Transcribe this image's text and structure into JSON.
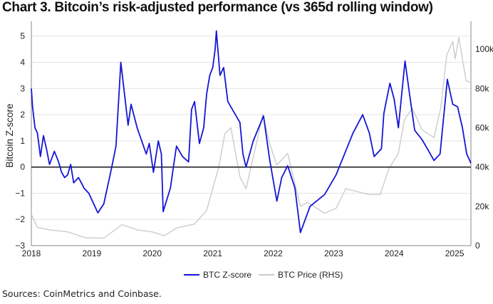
{
  "title": "Chart 3. Bitcoin’s risk-adjusted performance (vs 365d rolling window)",
  "sources": "Sources: CoinMetrics and Coinbase.",
  "chart_data": {
    "type": "line",
    "title": "Chart 3. Bitcoin’s risk-adjusted performance (vs 365d rolling window)",
    "ylabel": "Bitcoin Z-score",
    "y2label": "",
    "xlim": [
      2018,
      2025.27
    ],
    "ylim": [
      -3,
      5.4
    ],
    "y2lim": [
      0,
      112000
    ],
    "x_ticks": [
      "2018",
      "2019",
      "2020",
      "2021",
      "2022",
      "2023",
      "2024",
      "2025"
    ],
    "y_ticks": [
      "−3",
      "−2",
      "−1",
      "0",
      "1",
      "2",
      "3",
      "4",
      "5"
    ],
    "y2_ticks": [
      "0",
      "20k",
      "40k",
      "60k",
      "80k",
      "100k"
    ],
    "grid": true,
    "zero_line": true,
    "legend_position": "bottom",
    "series": [
      {
        "name": "BTC Z-score",
        "color": "#1515d6",
        "axis": "left",
        "x": [
          2018.0,
          2018.02,
          2018.06,
          2018.1,
          2018.15,
          2018.2,
          2018.25,
          2018.3,
          2018.38,
          2018.45,
          2018.5,
          2018.55,
          2018.6,
          2018.65,
          2018.7,
          2018.78,
          2018.85,
          2018.87,
          2018.95,
          2019.1,
          2019.2,
          2019.33,
          2019.4,
          2019.48,
          2019.52,
          2019.6,
          2019.65,
          2019.75,
          2019.9,
          2019.95,
          2020.02,
          2020.1,
          2020.15,
          2020.18,
          2020.3,
          2020.35,
          2020.4,
          2020.5,
          2020.6,
          2020.65,
          2020.7,
          2020.78,
          2020.85,
          2020.9,
          2020.95,
          2021.0,
          2021.04,
          2021.06,
          2021.12,
          2021.18,
          2021.25,
          2021.35,
          2021.45,
          2021.5,
          2021.55,
          2021.67,
          2021.84,
          2021.94,
          2022.06,
          2022.14,
          2022.24,
          2022.36,
          2022.45,
          2022.61,
          2022.85,
          2023.04,
          2023.18,
          2023.32,
          2023.48,
          2023.59,
          2023.67,
          2023.79,
          2023.83,
          2023.93,
          2024.0,
          2024.07,
          2024.18,
          2024.26,
          2024.34,
          2024.46,
          2024.55,
          2024.66,
          2024.76,
          2024.88,
          2024.97,
          2025.05,
          2025.13,
          2025.2,
          2025.27
        ],
        "y": [
          3.0,
          2.3,
          1.5,
          1.3,
          0.4,
          1.2,
          0.7,
          0.1,
          0.6,
          0.2,
          -0.2,
          -0.4,
          -0.3,
          0.1,
          -0.6,
          -0.4,
          -0.7,
          -0.8,
          -1.0,
          -1.75,
          -1.4,
          0.0,
          0.8,
          4.0,
          3.2,
          1.6,
          2.4,
          1.5,
          0.5,
          0.9,
          -0.2,
          1.0,
          0.5,
          -1.7,
          -0.8,
          0.0,
          0.8,
          0.4,
          0.2,
          2.2,
          2.5,
          0.9,
          1.5,
          2.8,
          3.5,
          3.8,
          4.5,
          5.2,
          3.5,
          3.8,
          2.5,
          2.1,
          1.7,
          0.5,
          0.0,
          1.0,
          1.95,
          0.3,
          -1.3,
          -0.4,
          0.05,
          -0.8,
          -2.5,
          -1.5,
          -1.05,
          -0.3,
          0.5,
          1.3,
          2.0,
          1.3,
          0.4,
          0.7,
          2.05,
          3.2,
          2.6,
          1.5,
          4.05,
          2.7,
          1.4,
          1.05,
          0.7,
          0.25,
          0.5,
          3.35,
          2.4,
          2.3,
          1.5,
          0.5,
          0.15
        ]
      },
      {
        "name": "BTC Price (RHS)",
        "color": "#cccccc",
        "axis": "right",
        "x": [
          2018.0,
          2018.1,
          2018.3,
          2018.6,
          2018.9,
          2019.2,
          2019.5,
          2019.75,
          2020.0,
          2020.2,
          2020.4,
          2020.7,
          2020.9,
          2021.0,
          2021.1,
          2021.2,
          2021.3,
          2021.45,
          2021.55,
          2021.7,
          2021.83,
          2021.94,
          2022.06,
          2022.24,
          2022.38,
          2022.45,
          2022.57,
          2022.85,
          2023.04,
          2023.2,
          2023.59,
          2023.77,
          2023.91,
          2024.07,
          2024.17,
          2024.3,
          2024.46,
          2024.66,
          2024.77,
          2024.87,
          2024.97,
          2025.01,
          2025.07,
          2025.19,
          2025.27
        ],
        "y": [
          16000,
          9300,
          8000,
          7000,
          4000,
          3800,
          10700,
          8000,
          7000,
          5000,
          9000,
          11000,
          18000,
          29000,
          40000,
          57000,
          60000,
          35000,
          29000,
          49000,
          67000,
          52000,
          41000,
          47000,
          29000,
          20000,
          22000,
          16500,
          19000,
          29000,
          26000,
          26000,
          39000,
          47000,
          64000,
          70000,
          59000,
          55000,
          70000,
          97000,
          104000,
          95000,
          106000,
          84000,
          83000
        ]
      }
    ]
  }
}
